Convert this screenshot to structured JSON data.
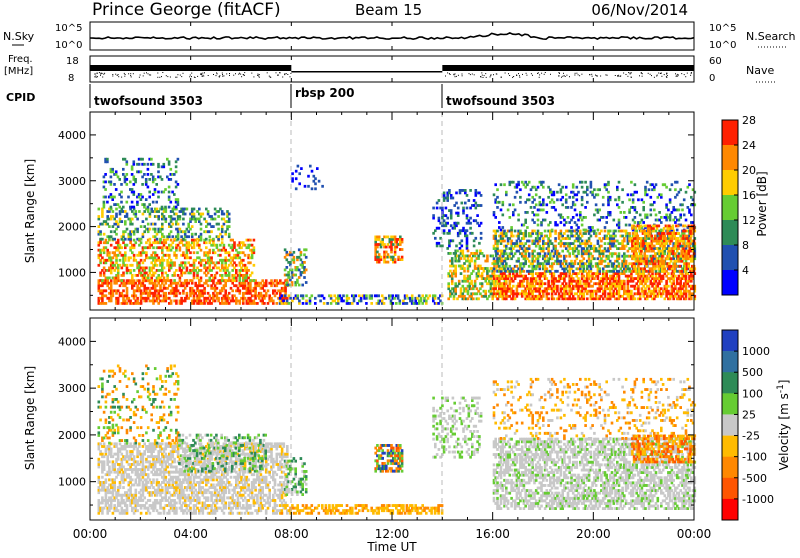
{
  "header": {
    "station": "Prince George (fitACF)",
    "beam": "Beam 15",
    "date": "06/Nov/2014"
  },
  "top_panels": {
    "nsky_label": "N.Sky",
    "nsearch_label": "N.Search",
    "nsky_ticks": [
      "10^5",
      "10^0"
    ],
    "freq_label_1": "Freq.",
    "freq_label_2": "[MHz]",
    "freq_ticks": [
      "18",
      "8"
    ],
    "nave_label": "Nave",
    "nave_ticks": [
      "60",
      "0"
    ],
    "cpid_label": "CPID",
    "cpid_segments": [
      {
        "name": "twofsound 3503",
        "start_hour": 0,
        "end_hour": 8
      },
      {
        "name": "rbsp 200",
        "start_hour": 8,
        "end_hour": 14
      },
      {
        "name": "twofsound 3503",
        "start_hour": 14,
        "end_hour": 24
      }
    ]
  },
  "chart_data": [
    {
      "type": "heatmap",
      "title": "",
      "xlabel": "",
      "ylabel": "Slant Range [km]",
      "xlim_hours": [
        0,
        24
      ],
      "ylim": [
        180,
        4500
      ],
      "yticks": [
        1000,
        2000,
        3000,
        4000
      ],
      "colorbar_label": "Power [dB]",
      "colorbar_ticks": [
        "4",
        "8",
        "12",
        "16",
        "20",
        "24",
        "28"
      ],
      "colors": [
        "#0000ff",
        "#2050b0",
        "#2e8b57",
        "#66cc33",
        "#ffcc00",
        "#ff8800",
        "#ff2000"
      ],
      "scatter_regions": [
        {
          "t0": 0.3,
          "t1": 7.8,
          "r0": 300,
          "r1": 800,
          "levels": [
            5,
            6
          ],
          "density": 0.55
        },
        {
          "t0": 0.3,
          "t1": 6.5,
          "r0": 800,
          "r1": 1700,
          "levels": [
            3,
            4,
            5,
            6
          ],
          "density": 0.45
        },
        {
          "t0": 0.3,
          "t1": 5.5,
          "r0": 1700,
          "r1": 2400,
          "levels": [
            2,
            3,
            4,
            1
          ],
          "density": 0.35
        },
        {
          "t0": 0.5,
          "t1": 3.5,
          "r0": 2400,
          "r1": 3500,
          "levels": [
            2,
            3,
            0,
            1
          ],
          "density": 0.2
        },
        {
          "t0": 7.7,
          "t1": 8.6,
          "r0": 700,
          "r1": 1500,
          "levels": [
            1,
            2,
            3,
            5
          ],
          "density": 0.4
        },
        {
          "t0": 8.0,
          "t1": 9.2,
          "r0": 2800,
          "r1": 3300,
          "levels": [
            0,
            1
          ],
          "density": 0.18
        },
        {
          "t0": 7.5,
          "t1": 14.0,
          "r0": 300,
          "r1": 520,
          "levels": [
            0,
            1,
            3,
            4
          ],
          "density": 0.45
        },
        {
          "t0": 11.3,
          "t1": 12.4,
          "r0": 1200,
          "r1": 1800,
          "levels": [
            4,
            5,
            6,
            2
          ],
          "density": 0.6
        },
        {
          "t0": 13.6,
          "t1": 15.5,
          "r0": 1500,
          "r1": 2800,
          "levels": [
            0,
            1,
            2
          ],
          "density": 0.25
        },
        {
          "t0": 14.2,
          "t1": 16.5,
          "r0": 400,
          "r1": 1500,
          "levels": [
            2,
            3,
            4,
            5
          ],
          "density": 0.45
        },
        {
          "t0": 16.0,
          "t1": 24.0,
          "r0": 400,
          "r1": 1000,
          "levels": [
            5,
            6,
            6,
            4
          ],
          "density": 0.65
        },
        {
          "t0": 16.0,
          "t1": 24.0,
          "r0": 1000,
          "r1": 1900,
          "levels": [
            1,
            2,
            3,
            4,
            5
          ],
          "density": 0.5
        },
        {
          "t0": 16.0,
          "t1": 24.0,
          "r0": 1900,
          "r1": 3000,
          "levels": [
            0,
            1,
            2,
            3
          ],
          "density": 0.18
        },
        {
          "t0": 21.5,
          "t1": 24.0,
          "r0": 1000,
          "r1": 2000,
          "levels": [
            4,
            5,
            6
          ],
          "density": 0.45
        }
      ]
    },
    {
      "type": "heatmap",
      "title": "",
      "xlabel": "Time UT",
      "ylabel": "Slant Range [km]",
      "xlim_hours": [
        0,
        24
      ],
      "ylim": [
        180,
        4500
      ],
      "yticks": [
        1000,
        2000,
        3000,
        4000
      ],
      "xticks": [
        "00:00",
        "04:00",
        "08:00",
        "12:00",
        "16:00",
        "20:00",
        "00:00"
      ],
      "colorbar_label": "Velocity [m s^-1]",
      "colorbar_ticks": [
        "1000",
        "500",
        "100",
        "25",
        "-25",
        "-100",
        "-500",
        "-1000"
      ],
      "colors": [
        "#2040c0",
        "#3070a0",
        "#2e8b57",
        "#66cc33",
        "#c8c8c8",
        "#ffbb00",
        "#ff8800",
        "#ff5500",
        "#ff0000"
      ],
      "scatter_regions": [
        {
          "t0": 0.3,
          "t1": 7.8,
          "r0": 300,
          "r1": 1800,
          "levels": [
            4,
            4,
            4,
            4,
            5
          ],
          "density": 0.55
        },
        {
          "t0": 0.3,
          "t1": 3.5,
          "r0": 1800,
          "r1": 3500,
          "levels": [
            5,
            6,
            3,
            2
          ],
          "density": 0.18
        },
        {
          "t0": 3.5,
          "t1": 7.0,
          "r0": 1200,
          "r1": 2000,
          "levels": [
            2,
            3,
            4
          ],
          "density": 0.35
        },
        {
          "t0": 7.7,
          "t1": 8.6,
          "r0": 700,
          "r1": 1500,
          "levels": [
            2,
            3,
            4
          ],
          "density": 0.35
        },
        {
          "t0": 7.5,
          "t1": 14.0,
          "r0": 300,
          "r1": 520,
          "levels": [
            5,
            6,
            5
          ],
          "density": 0.5
        },
        {
          "t0": 11.3,
          "t1": 12.4,
          "r0": 1200,
          "r1": 1800,
          "levels": [
            0,
            2,
            3,
            6,
            7
          ],
          "density": 0.6
        },
        {
          "t0": 13.6,
          "t1": 15.5,
          "r0": 1500,
          "r1": 2800,
          "levels": [
            4,
            4,
            3
          ],
          "density": 0.25
        },
        {
          "t0": 16.0,
          "t1": 24.0,
          "r0": 400,
          "r1": 1900,
          "levels": [
            4,
            4,
            4,
            4,
            3
          ],
          "density": 0.55
        },
        {
          "t0": 16.0,
          "t1": 24.0,
          "r0": 1900,
          "r1": 3200,
          "levels": [
            5,
            6,
            4
          ],
          "density": 0.16
        },
        {
          "t0": 21.5,
          "t1": 24.0,
          "r0": 1400,
          "r1": 2000,
          "levels": [
            6,
            7,
            5
          ],
          "density": 0.5
        }
      ]
    }
  ]
}
